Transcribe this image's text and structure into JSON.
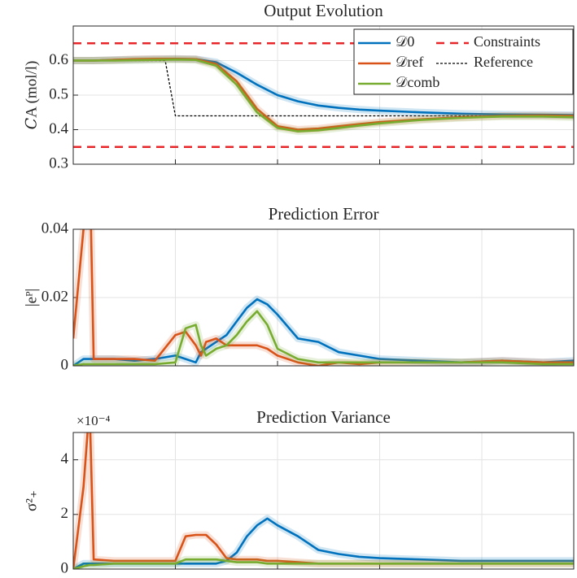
{
  "chart_data": [
    {
      "type": "line",
      "title": "Output Evolution",
      "ylabel": "𝐶A (mol/l)",
      "x": [
        0,
        2,
        4,
        6,
        8,
        10,
        12,
        14,
        16,
        18,
        20,
        22,
        24,
        26,
        28,
        30,
        34,
        38,
        42,
        46,
        49
      ],
      "xlim": [
        0,
        49
      ],
      "xticks": [
        0,
        10,
        20,
        30,
        40
      ],
      "ylim": [
        0.3,
        0.7
      ],
      "yticks": [
        0.3,
        0.4,
        0.5,
        0.6
      ],
      "grid": true,
      "legend": "upper right",
      "constraints": {
        "name": "Constraints",
        "color": "#e8262a",
        "values": [
          0.35,
          0.65
        ]
      },
      "series": [
        {
          "name": "𝒟0",
          "color": "#0072bd",
          "values": [
            0.6,
            0.6,
            0.602,
            0.603,
            0.604,
            0.605,
            0.604,
            0.595,
            0.565,
            0.53,
            0.5,
            0.482,
            0.47,
            0.463,
            0.458,
            0.455,
            0.45,
            0.446,
            0.444,
            0.443,
            0.442
          ]
        },
        {
          "name": "𝒟ref",
          "color": "#d95319",
          "values": [
            0.6,
            0.6,
            0.602,
            0.604,
            0.605,
            0.605,
            0.604,
            0.59,
            0.54,
            0.46,
            0.41,
            0.4,
            0.403,
            0.41,
            0.416,
            0.422,
            0.43,
            0.436,
            0.44,
            0.441,
            0.44
          ]
        },
        {
          "name": "𝒟comb",
          "color": "#77ac30",
          "values": [
            0.6,
            0.6,
            0.6,
            0.601,
            0.602,
            0.603,
            0.602,
            0.585,
            0.53,
            0.45,
            0.405,
            0.395,
            0.398,
            0.405,
            0.412,
            0.418,
            0.428,
            0.434,
            0.438,
            0.438,
            0.436
          ]
        },
        {
          "name": "Reference",
          "color": "#000000",
          "dash": true,
          "x": [
            0,
            9,
            10,
            49
          ],
          "values": [
            0.6,
            0.6,
            0.44,
            0.44
          ]
        }
      ]
    },
    {
      "type": "line",
      "title": "Prediction Error",
      "ylabel": "|eᴾ|",
      "x": [
        0,
        1,
        1.6,
        2,
        4,
        6,
        8,
        10,
        11,
        12,
        12.5,
        13,
        14,
        15,
        16,
        17,
        18,
        19,
        20,
        22,
        24,
        26,
        28,
        30,
        34,
        38,
        42,
        46,
        49
      ],
      "xlim": [
        0,
        49
      ],
      "xticks": [
        0,
        10,
        20,
        30,
        40
      ],
      "ylim": [
        0,
        0.04
      ],
      "yticks": [
        0,
        0.02,
        0.04
      ],
      "grid": true,
      "series": [
        {
          "color": "#0072bd",
          "values": [
            0,
            0.002,
            0.002,
            0.002,
            0.002,
            0.0015,
            0.002,
            0.003,
            0.002,
            0.001,
            0.004,
            0.005,
            0.007,
            0.009,
            0.013,
            0.017,
            0.0195,
            0.018,
            0.015,
            0.008,
            0.007,
            0.004,
            0.003,
            0.002,
            0.0015,
            0.001,
            0.0015,
            0.001,
            0.0015
          ]
        },
        {
          "color": "#d95319",
          "values": [
            0.008,
            0.04,
            0.06,
            0.002,
            0.002,
            0.002,
            0.0015,
            0.009,
            0.01,
            0.006,
            0.003,
            0.007,
            0.008,
            0.006,
            0.006,
            0.006,
            0.006,
            0.005,
            0.003,
            0.001,
            0,
            0.001,
            0.0005,
            0.001,
            0.001,
            0.001,
            0.0015,
            0.001,
            0.001
          ]
        },
        {
          "color": "#77ac30",
          "values": [
            0,
            0.0005,
            0.0005,
            0.0005,
            0.0005,
            0.0005,
            0.0005,
            0.001,
            0.011,
            0.012,
            0.006,
            0.003,
            0.005,
            0.006,
            0.009,
            0.013,
            0.016,
            0.012,
            0.005,
            0.002,
            0.001,
            0.001,
            0.001,
            0.001,
            0.001,
            0.001,
            0.001,
            0.0005,
            0.0005
          ]
        }
      ]
    },
    {
      "type": "line",
      "title": "Prediction Variance",
      "ylabel": "σ²₊",
      "exponent_label": "×10⁻⁴",
      "x": [
        0,
        1,
        1.6,
        2,
        4,
        6,
        8,
        10,
        11,
        12,
        12.5,
        13,
        14,
        15,
        16,
        17,
        18,
        19,
        20,
        22,
        24,
        26,
        28,
        30,
        34,
        38,
        42,
        46,
        49
      ],
      "xlim": [
        0,
        49
      ],
      "xticks": [
        0,
        10,
        20,
        30,
        40
      ],
      "ylim": [
        0,
        5
      ],
      "yticks": [
        0,
        2,
        4
      ],
      "grid": true,
      "series": [
        {
          "color": "#0072bd",
          "values": [
            0,
            0.2,
            0.2,
            0.2,
            0.2,
            0.2,
            0.2,
            0.2,
            0.2,
            0.2,
            0.2,
            0.2,
            0.2,
            0.3,
            0.6,
            1.2,
            1.6,
            1.85,
            1.6,
            1.2,
            0.7,
            0.55,
            0.45,
            0.4,
            0.35,
            0.3,
            0.3,
            0.3,
            0.3
          ]
        },
        {
          "color": "#d95319",
          "values": [
            0,
            3,
            6,
            0.35,
            0.3,
            0.3,
            0.3,
            0.3,
            1.2,
            1.25,
            1.25,
            1.25,
            0.9,
            0.4,
            0.35,
            0.35,
            0.35,
            0.3,
            0.3,
            0.25,
            0.2,
            0.2,
            0.2,
            0.2,
            0.2,
            0.2,
            0.2,
            0.2,
            0.2
          ]
        },
        {
          "color": "#77ac30",
          "values": [
            0,
            0.1,
            0.15,
            0.15,
            0.2,
            0.2,
            0.2,
            0.2,
            0.35,
            0.35,
            0.35,
            0.35,
            0.35,
            0.3,
            0.25,
            0.25,
            0.25,
            0.2,
            0.2,
            0.2,
            0.2,
            0.2,
            0.2,
            0.2,
            0.2,
            0.2,
            0.2,
            0.2,
            0.2
          ]
        }
      ]
    }
  ]
}
